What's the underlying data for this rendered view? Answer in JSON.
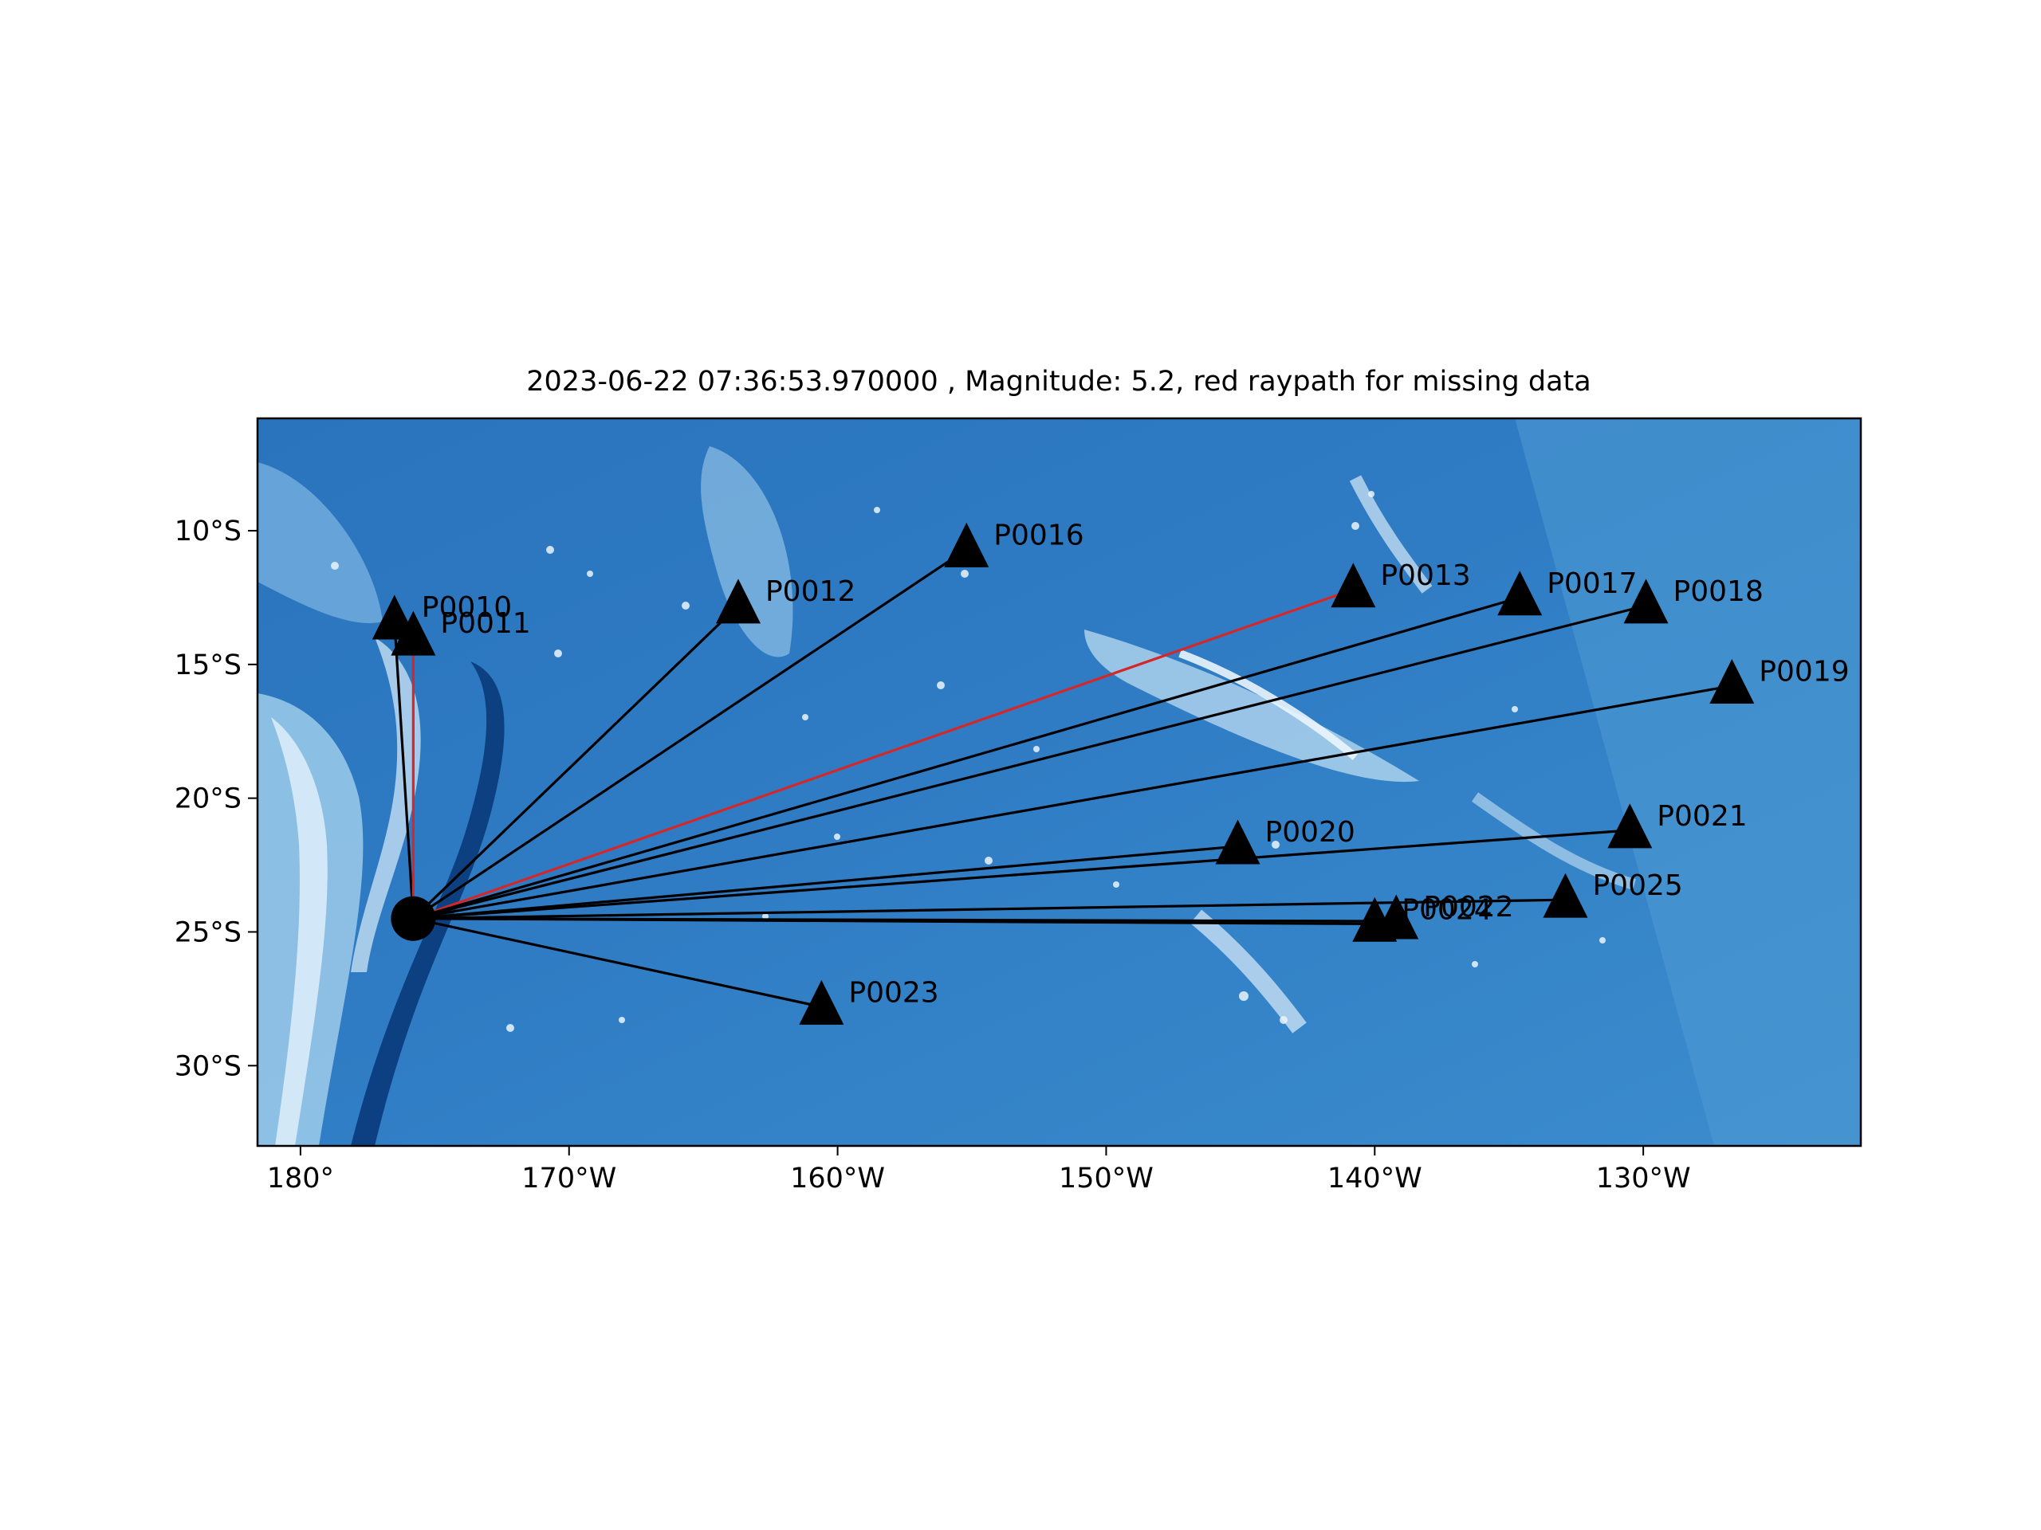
{
  "chart_data": {
    "type": "map",
    "title": "2023-06-22 07:36:53.970000 , Magnitude: 5.2, red raypath for missing data",
    "xlim": [
      -181.6,
      -121.9
    ],
    "ylim": [
      -33.0,
      -5.8
    ],
    "x_ticks": [
      {
        "value": -180,
        "label": "180°"
      },
      {
        "value": -170,
        "label": "170°W"
      },
      {
        "value": -160,
        "label": "160°W"
      },
      {
        "value": -150,
        "label": "150°W"
      },
      {
        "value": -140,
        "label": "140°W"
      },
      {
        "value": -130,
        "label": "130°W"
      }
    ],
    "y_ticks": [
      {
        "value": -10,
        "label": "10°S"
      },
      {
        "value": -15,
        "label": "15°S"
      },
      {
        "value": -20,
        "label": "20°S"
      },
      {
        "value": -25,
        "label": "25°S"
      },
      {
        "value": -30,
        "label": "30°S"
      }
    ],
    "event": {
      "lon": -175.8,
      "lat": -24.5
    },
    "stations": [
      {
        "name": "P0010",
        "lon": -176.5,
        "lat": -13.4,
        "missing": false
      },
      {
        "name": "P0011",
        "lon": -175.8,
        "lat": -14.0,
        "missing": true
      },
      {
        "name": "P0012",
        "lon": -163.7,
        "lat": -12.8,
        "missing": false
      },
      {
        "name": "P0016",
        "lon": -155.2,
        "lat": -10.7,
        "missing": false
      },
      {
        "name": "P0013",
        "lon": -140.8,
        "lat": -12.2,
        "missing": true
      },
      {
        "name": "P0017",
        "lon": -134.6,
        "lat": -12.5,
        "missing": false
      },
      {
        "name": "P0018",
        "lon": -129.9,
        "lat": -12.8,
        "missing": false
      },
      {
        "name": "P0019",
        "lon": -126.7,
        "lat": -15.8,
        "missing": false
      },
      {
        "name": "P0020",
        "lon": -145.1,
        "lat": -21.8,
        "missing": false
      },
      {
        "name": "P0021",
        "lon": -130.5,
        "lat": -21.2,
        "missing": false
      },
      {
        "name": "P0025",
        "lon": -132.9,
        "lat": -23.8,
        "missing": false
      },
      {
        "name": "P0022",
        "lon": -139.2,
        "lat": -24.6,
        "missing": false
      },
      {
        "name": "P0024",
        "lon": -140.0,
        "lat": -24.7,
        "missing": false
      },
      {
        "name": "P0023",
        "lon": -160.6,
        "lat": -27.8,
        "missing": false
      }
    ],
    "colors": {
      "raypath": "#000000",
      "raypath_missing": "#d62728",
      "marker": "#000000",
      "ocean_dark": "#1a5ea8",
      "ocean_light": "#5aa6da"
    }
  }
}
